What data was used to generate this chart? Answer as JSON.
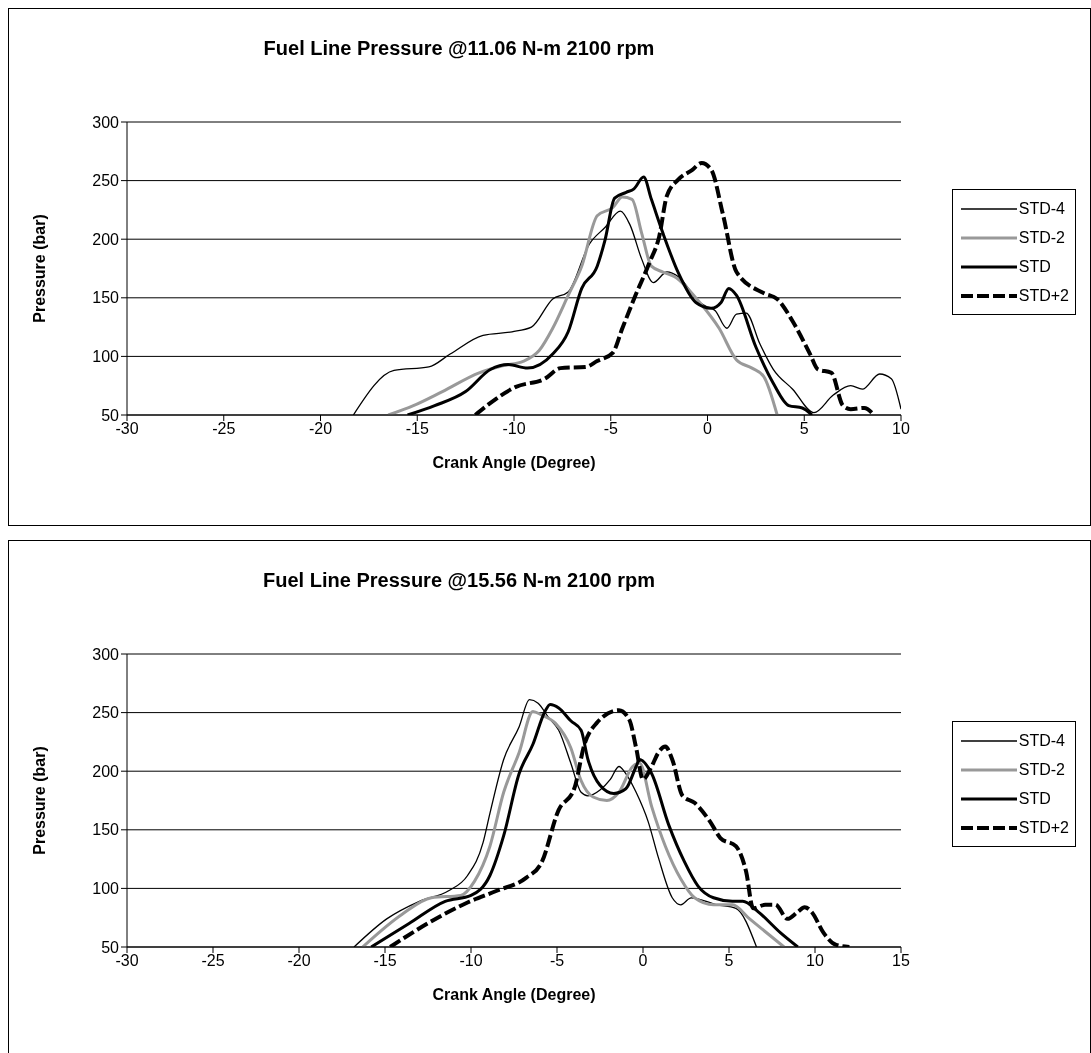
{
  "chart_data": [
    {
      "type": "line",
      "title": "Fuel Line Pressure @11.06 N-m 2100 rpm",
      "xlabel": "Crank Angle (Degree)",
      "ylabel": "Pressure (bar)",
      "xlim": [
        -30,
        10
      ],
      "xticks": [
        -30,
        -25,
        -20,
        -15,
        -10,
        -5,
        0,
        5,
        10
      ],
      "ylim": [
        50,
        300
      ],
      "yticks": [
        50,
        100,
        150,
        200,
        250,
        300
      ],
      "grid": "y",
      "legend": "right",
      "marker": "none",
      "series": [
        {
          "name": "STD-4",
          "color": "#000000",
          "line_style": "solid",
          "x": [
            -18.3,
            -16.2,
            -14.4,
            -13.3,
            -11.6,
            -10.1,
            -9.1,
            -8,
            -7.2,
            -6.1,
            -5.3,
            -4.5,
            -4,
            -3.4,
            -2.8,
            -2.1,
            -1.5,
            -0.4,
            -0.1,
            0.4,
            1,
            1.5,
            2,
            2.7,
            3.4,
            4.4,
            5.5,
            6.5,
            7.4,
            8,
            8.9,
            9.5,
            10
          ],
          "values": [
            50,
            88,
            91,
            102,
            118,
            121,
            125,
            149,
            155,
            196,
            210,
            224,
            212,
            183,
            163,
            172,
            168,
            146,
            143,
            139,
            124,
            136,
            137,
            111,
            89,
            72,
            52,
            67,
            75,
            72,
            85,
            81,
            55
          ]
        },
        {
          "name": "STD-2",
          "color": "#999999",
          "line_style": "solid",
          "x": [
            -16.5,
            -15.2,
            -13.7,
            -11.8,
            -10.6,
            -9.5,
            -8.7,
            -8,
            -7.2,
            -6.5,
            -5.7,
            -4.9,
            -4.4,
            -3.9,
            -3.4,
            -2.9,
            -2.3,
            -1.7,
            -0.4,
            0.6,
            1.5,
            2.3,
            2.9,
            3.6
          ],
          "values": [
            50,
            58,
            70,
            86,
            92,
            96,
            105,
            124,
            152,
            177,
            220,
            227,
            236,
            234,
            205,
            177,
            172,
            168,
            146,
            124,
            97,
            90,
            83,
            50
          ]
        },
        {
          "name": "STD",
          "color": "#000000",
          "line_style": "solid",
          "x": [
            -15.5,
            -14.1,
            -12.5,
            -11.2,
            -10.3,
            -9.3,
            -8,
            -7.2,
            -6.5,
            -5.7,
            -5.3,
            -4.8,
            -4.2,
            -3.8,
            -3.3,
            -2.9,
            -2.3,
            -1.5,
            -0.6,
            0.2,
            0.7,
            1.1,
            1.5,
            2.5,
            3.4,
            4.2,
            4.9,
            5.4
          ],
          "values": [
            50,
            58,
            70,
            89,
            93,
            90,
            102,
            121,
            158,
            177,
            199,
            235,
            240,
            243,
            253,
            234,
            205,
            171,
            146,
            141,
            146,
            158,
            152,
            108,
            77,
            58,
            56,
            50
          ]
        },
        {
          "name": "STD+2",
          "color": "#000000",
          "line_style": "dashed",
          "x": [
            -12,
            -11.4,
            -9.9,
            -8.4,
            -7.6,
            -6.3,
            -5.7,
            -4.9,
            -4.4,
            -3.8,
            -3,
            -2.5,
            -2.1,
            -1.5,
            -0.8,
            -0.3,
            0.2,
            0.8,
            1.5,
            2.9,
            3.6,
            4.4,
            5.3,
            5.7,
            6.4,
            7,
            7.4,
            8.1,
            8.6
          ],
          "values": [
            50,
            58,
            74,
            81,
            90,
            91,
            96,
            103,
            124,
            149,
            180,
            202,
            237,
            251,
            259,
            265,
            259,
            221,
            172,
            154,
            149,
            130,
            102,
            89,
            86,
            58,
            55,
            56,
            50
          ]
        }
      ]
    },
    {
      "type": "line",
      "title": "Fuel Line Pressure @15.56 N-m 2100 rpm",
      "xlabel": "Crank Angle (Degree)",
      "ylabel": "Pressure (bar)",
      "xlim": [
        -30,
        15
      ],
      "xticks": [
        -30,
        -25,
        -20,
        -15,
        -10,
        -5,
        0,
        5,
        10,
        15
      ],
      "ylim": [
        50,
        300
      ],
      "yticks": [
        50,
        100,
        150,
        200,
        250,
        300
      ],
      "grid": "y",
      "legend": "right",
      "marker": "none",
      "series": [
        {
          "name": "STD-4",
          "color": "#000000",
          "line_style": "solid",
          "x": [
            -16.8,
            -14.9,
            -13,
            -11.3,
            -10.2,
            -9.3,
            -8.9,
            -8.1,
            -7.2,
            -6.6,
            -6.1,
            -5.5,
            -4.9,
            -4.2,
            -3.6,
            -3.2,
            -2.5,
            -1.9,
            -1.4,
            -1,
            -0.4,
            0.3,
            0.9,
            1.7,
            2.2,
            2.8,
            4.3,
            5.4,
            6.6
          ],
          "values": [
            50,
            74,
            89,
            98,
            111,
            139,
            164,
            210,
            238,
            261,
            258,
            246,
            235,
            207,
            182,
            179,
            184,
            193,
            204,
            198,
            182,
            157,
            126,
            92,
            86,
            92,
            86,
            83,
            50
          ]
        },
        {
          "name": "STD-2",
          "color": "#999999",
          "line_style": "solid",
          "x": [
            -16.3,
            -14,
            -12.3,
            -10.6,
            -9.8,
            -8.9,
            -8.1,
            -7.2,
            -6.4,
            -5.9,
            -5.1,
            -4.2,
            -3.6,
            -2.9,
            -2.1,
            -1.4,
            -0.6,
            -0.2,
            0.5,
            1.3,
            2.2,
            3,
            4.1,
            5.2,
            6.2,
            8.2
          ],
          "values": [
            50,
            78,
            92,
            94,
            106,
            136,
            182,
            216,
            251,
            248,
            241,
            220,
            192,
            178,
            175,
            182,
            204,
            207,
            170,
            136,
            108,
            92,
            86,
            86,
            74,
            50
          ]
        },
        {
          "name": "STD",
          "color": "#000000",
          "line_style": "solid",
          "x": [
            -15.8,
            -13.6,
            -11.5,
            -10,
            -8.9,
            -8.1,
            -7.2,
            -6.4,
            -5.7,
            -5.4,
            -4.9,
            -4.2,
            -3.6,
            -3.2,
            -2.5,
            -1.7,
            -1,
            -0.4,
            -0.2,
            0.5,
            1.5,
            2.4,
            3.2,
            4.1,
            5.2,
            5.8,
            6.7,
            8,
            9
          ],
          "values": [
            50,
            70,
            89,
            94,
            111,
            145,
            198,
            223,
            251,
            257,
            254,
            243,
            235,
            210,
            188,
            181,
            185,
            204,
            210,
            198,
            154,
            123,
            102,
            92,
            89,
            89,
            80,
            62,
            50
          ]
        },
        {
          "name": "STD+2",
          "color": "#000000",
          "line_style": "dashed",
          "x": [
            -14.7,
            -12.3,
            -10.2,
            -8.5,
            -6.8,
            -5.9,
            -4.9,
            -4,
            -3.4,
            -2.7,
            -1.4,
            -0.8,
            -0.4,
            0,
            0.5,
            0.9,
            1.3,
            1.7,
            2.3,
            3,
            3.9,
            4.5,
            5.4,
            6,
            6.4,
            7.1,
            7.7,
            8.4,
            9,
            9.4,
            9.8,
            10.5,
            11.2,
            12
          ],
          "values": [
            50,
            72,
            88,
            98,
            109,
            122,
            167,
            185,
            223,
            241,
            252,
            244,
            220,
            193,
            204,
            216,
            221,
            210,
            179,
            173,
            157,
            143,
            136,
            114,
            83,
            86,
            86,
            74,
            80,
            84,
            80,
            62,
            52,
            50
          ]
        }
      ]
    }
  ]
}
